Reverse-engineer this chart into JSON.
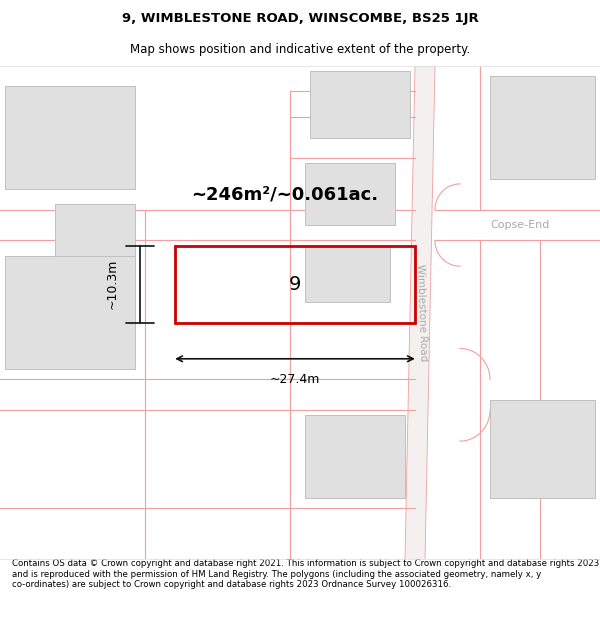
{
  "title": "9, WIMBLESTONE ROAD, WINSCOMBE, BS25 1JR",
  "subtitle": "Map shows position and indicative extent of the property.",
  "footer": "Contains OS data © Crown copyright and database right 2021. This information is subject to Crown copyright and database rights 2023 and is reproduced with the permission of HM Land Registry. The polygons (including the associated geometry, namely x, y co-ordinates) are subject to Crown copyright and database rights 2023 Ordnance Survey 100026316.",
  "bg_color": "#ffffff",
  "map_bg": "#ffffff",
  "road_line_color": "#f0a0a0",
  "building_fill": "#e0e0e0",
  "building_edge": "#c0c0c0",
  "highlight_color": "#cc0000",
  "area_label": "~246m²/~0.061ac.",
  "number_label": "9",
  "dim_width": "~27.4m",
  "dim_height": "~10.3m",
  "road_label": "Wimblestone Road",
  "side_road_label": "Copse-End",
  "label_color": "#aaaaaa",
  "dim_line_color": "#111111",
  "title_fontsize": 9.5,
  "subtitle_fontsize": 8.5,
  "footer_fontsize": 6.2,
  "area_fontsize": 13,
  "number_fontsize": 14,
  "dim_fontsize": 9
}
